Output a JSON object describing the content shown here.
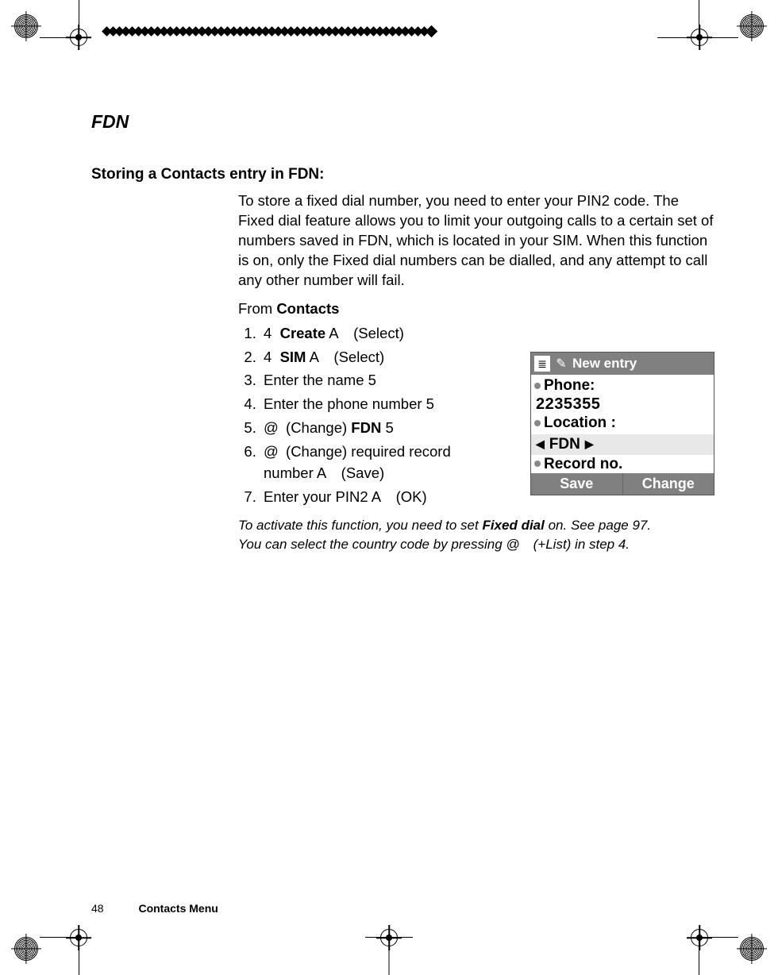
{
  "section_title": "FDN",
  "subhead": "Storing a Contacts entry in FDN:",
  "intro": "To store a fixed dial number, you need to enter your PIN2 code. The Fixed dial feature allows you to limit your outgoing calls to a certain set of numbers saved in FDN, which is located in your SIM. When this function is on, only the Fixed dial numbers can be dialled, and any attempt to call any other number will fail.",
  "from_prefix": "From ",
  "from_menu": "Contacts",
  "steps": {
    "s1_pre": "4",
    "s1_b": "Create",
    "s1_post": " A (Select)",
    "s2_pre": "4",
    "s2_b": "SIM",
    "s2_post": " A (Select)",
    "s3": "Enter the name 5",
    "s4": "Enter the phone number 5",
    "s5_pre": "@ (Change) ",
    "s5_b": "FDN",
    "s5_post": " 5",
    "s6": "@ (Change) required record number A (Save)",
    "s7": "Enter your PIN2 A (OK)"
  },
  "note_line1_pre": "To activate this function, you need to set ",
  "note_line1_b": "Fixed dial",
  "note_line1_post": " on. See page 97.",
  "note_line2": "You can select the country code by pressing @ (+List) in step 4.",
  "phone": {
    "title": "New entry",
    "row_phone": "Phone:",
    "value": "2235355",
    "row_location": "Location :",
    "loc_value": "FDN",
    "row_record": "Record no.",
    "softkey_left": "Save",
    "softkey_right": "Change"
  },
  "footer": {
    "page": "48",
    "section": "Contacts Menu"
  },
  "diamond_count": 52
}
